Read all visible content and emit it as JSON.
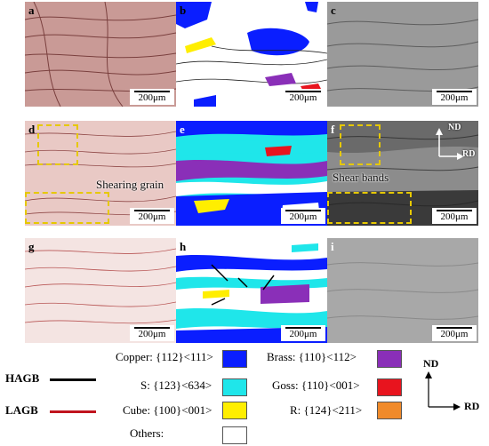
{
  "panels": [
    {
      "label": "a",
      "scale": "200μm"
    },
    {
      "label": "b",
      "scale": "200μm"
    },
    {
      "label": "c",
      "scale": "200μm"
    },
    {
      "label": "d",
      "scale": "200μm",
      "annotation": "Shearing grain"
    },
    {
      "label": "e",
      "scale": "200μm"
    },
    {
      "label": "f",
      "scale": "200μm",
      "annotation": "Shear bands",
      "axes": {
        "nd": "ND",
        "rd": "RD"
      }
    },
    {
      "label": "g",
      "scale": "200μm"
    },
    {
      "label": "h",
      "scale": "200μm"
    },
    {
      "label": "i",
      "scale": "200μm"
    }
  ],
  "legend": {
    "boundaries": [
      {
        "label": "HAGB",
        "color": "#000000"
      },
      {
        "label": "LAGB",
        "color": "#c0141e"
      }
    ],
    "textures": [
      {
        "text": "Copper: {112}<111>",
        "color": "#0a1eff"
      },
      {
        "text": "S: {123}<634>",
        "color": "#1fe6ea"
      },
      {
        "text": "Cube: {100}<001>",
        "color": "#ffee00"
      },
      {
        "text": "Others:",
        "color": "#ffffff"
      },
      {
        "text": "Brass: {110}<112>",
        "color": "#8a2fb8"
      },
      {
        "text": "Goss: {110}<001>",
        "color": "#e8141e"
      },
      {
        "text": "R: {124}<211>",
        "color": "#f08a2a"
      }
    ],
    "axes": {
      "nd": "ND",
      "rd": "RD"
    }
  }
}
